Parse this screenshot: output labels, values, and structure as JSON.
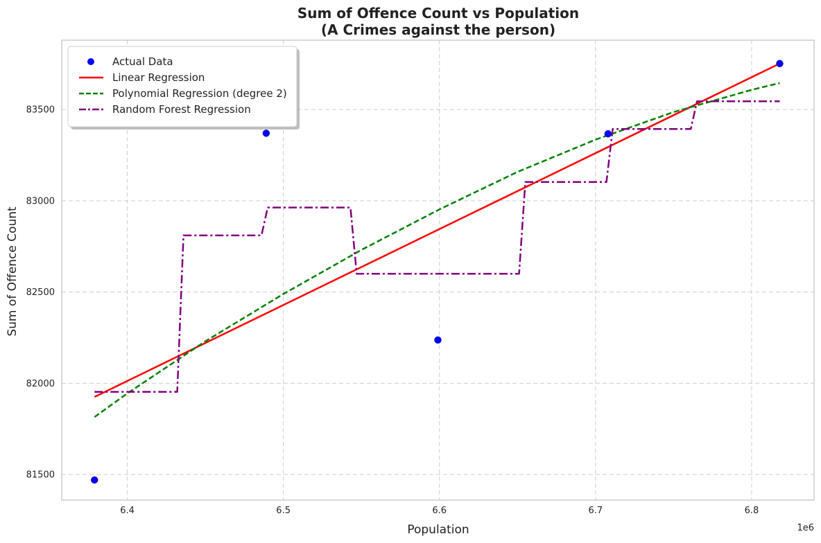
{
  "chart_data": {
    "type": "scatter",
    "title_line1": "Sum of Offence Count vs Population",
    "title_line2": "(A Crimes against the person)",
    "xlabel": "Population",
    "ylabel": "Sum of Offence Count",
    "x_offset_label": "1e6",
    "xlim": [
      6.358,
      6.84
    ],
    "ylim": [
      81360,
      83880
    ],
    "x_ticks": [
      6.4,
      6.5,
      6.6,
      6.7,
      6.8
    ],
    "x_tick_labels": [
      "6.4",
      "6.5",
      "6.6",
      "6.7",
      "6.8"
    ],
    "y_ticks": [
      81500,
      82000,
      82500,
      83000,
      83500
    ],
    "y_tick_labels": [
      "81500",
      "82000",
      "82500",
      "83000",
      "83500"
    ],
    "grid": true,
    "legend_position": "upper-left",
    "series": [
      {
        "name": "Actual Data",
        "kind": "scatter",
        "color": "#0000ff",
        "points": [
          [
            6.379,
            81470
          ],
          [
            6.489,
            83370
          ],
          [
            6.599,
            82237
          ],
          [
            6.708,
            83367
          ],
          [
            6.818,
            83752
          ]
        ]
      },
      {
        "name": "Linear Regression",
        "kind": "line",
        "color": "#ff0000",
        "style": "solid",
        "points": [
          [
            6.379,
            81925
          ],
          [
            6.818,
            83752
          ]
        ]
      },
      {
        "name": "Polynomial Regression (degree 2)",
        "kind": "line",
        "color": "#008000",
        "style": "dashed",
        "points": [
          [
            6.379,
            81815
          ],
          [
            6.4,
            81944
          ],
          [
            6.45,
            82230
          ],
          [
            6.5,
            82489
          ],
          [
            6.55,
            82731
          ],
          [
            6.6,
            82953
          ],
          [
            6.65,
            83158
          ],
          [
            6.7,
            83335
          ],
          [
            6.75,
            83486
          ],
          [
            6.8,
            83608
          ],
          [
            6.818,
            83645
          ]
        ]
      },
      {
        "name": "Random Forest Regression",
        "kind": "line",
        "color": "#800080",
        "style": "dashdot",
        "points": [
          [
            6.379,
            81953
          ],
          [
            6.432,
            81953
          ],
          [
            6.436,
            82810
          ],
          [
            6.486,
            82810
          ],
          [
            6.49,
            82963
          ],
          [
            6.543,
            82963
          ],
          [
            6.547,
            82600
          ],
          [
            6.651,
            82600
          ],
          [
            6.655,
            83103
          ],
          [
            6.707,
            83103
          ],
          [
            6.711,
            83393
          ],
          [
            6.761,
            83393
          ],
          [
            6.765,
            83545
          ],
          [
            6.818,
            83545
          ]
        ]
      }
    ]
  }
}
